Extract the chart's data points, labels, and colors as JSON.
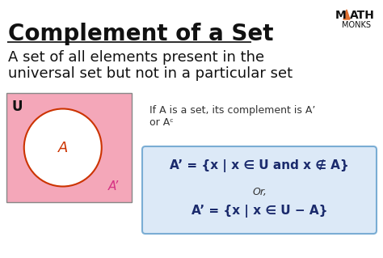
{
  "title": "Complement of a Set",
  "subtitle_line1": "A set of all elements present in the",
  "subtitle_line2": "universal set but not in a particular set",
  "venn_rect_color": "#f4a7b9",
  "venn_circle_color": "white",
  "venn_circle_edge_color": "#cc3300",
  "venn_U_label": "U",
  "venn_A_label": "A",
  "venn_Aprime_label": "A’",
  "venn_A_color": "#cc3300",
  "venn_Aprime_color": "#d63384",
  "note_text": "If A is a set, its complement is A’\nor Aᶜ",
  "box_bg_color": "#dce9f7",
  "box_edge_color": "#7aadd4",
  "formula1": "A’ = {x | x ∈ U and x ∉ A}",
  "formula_or": "Or,",
  "formula2": "A’ = {x | x ∈ U − A}",
  "logo_M": "M",
  "logo_ATH": "ATH",
  "logo_MONKS": "MONKS",
  "logo_triangle_color": "#e07030",
  "background_color": "white",
  "title_color": "#111111",
  "subtitle_color": "#111111",
  "separator_color": "#333333"
}
